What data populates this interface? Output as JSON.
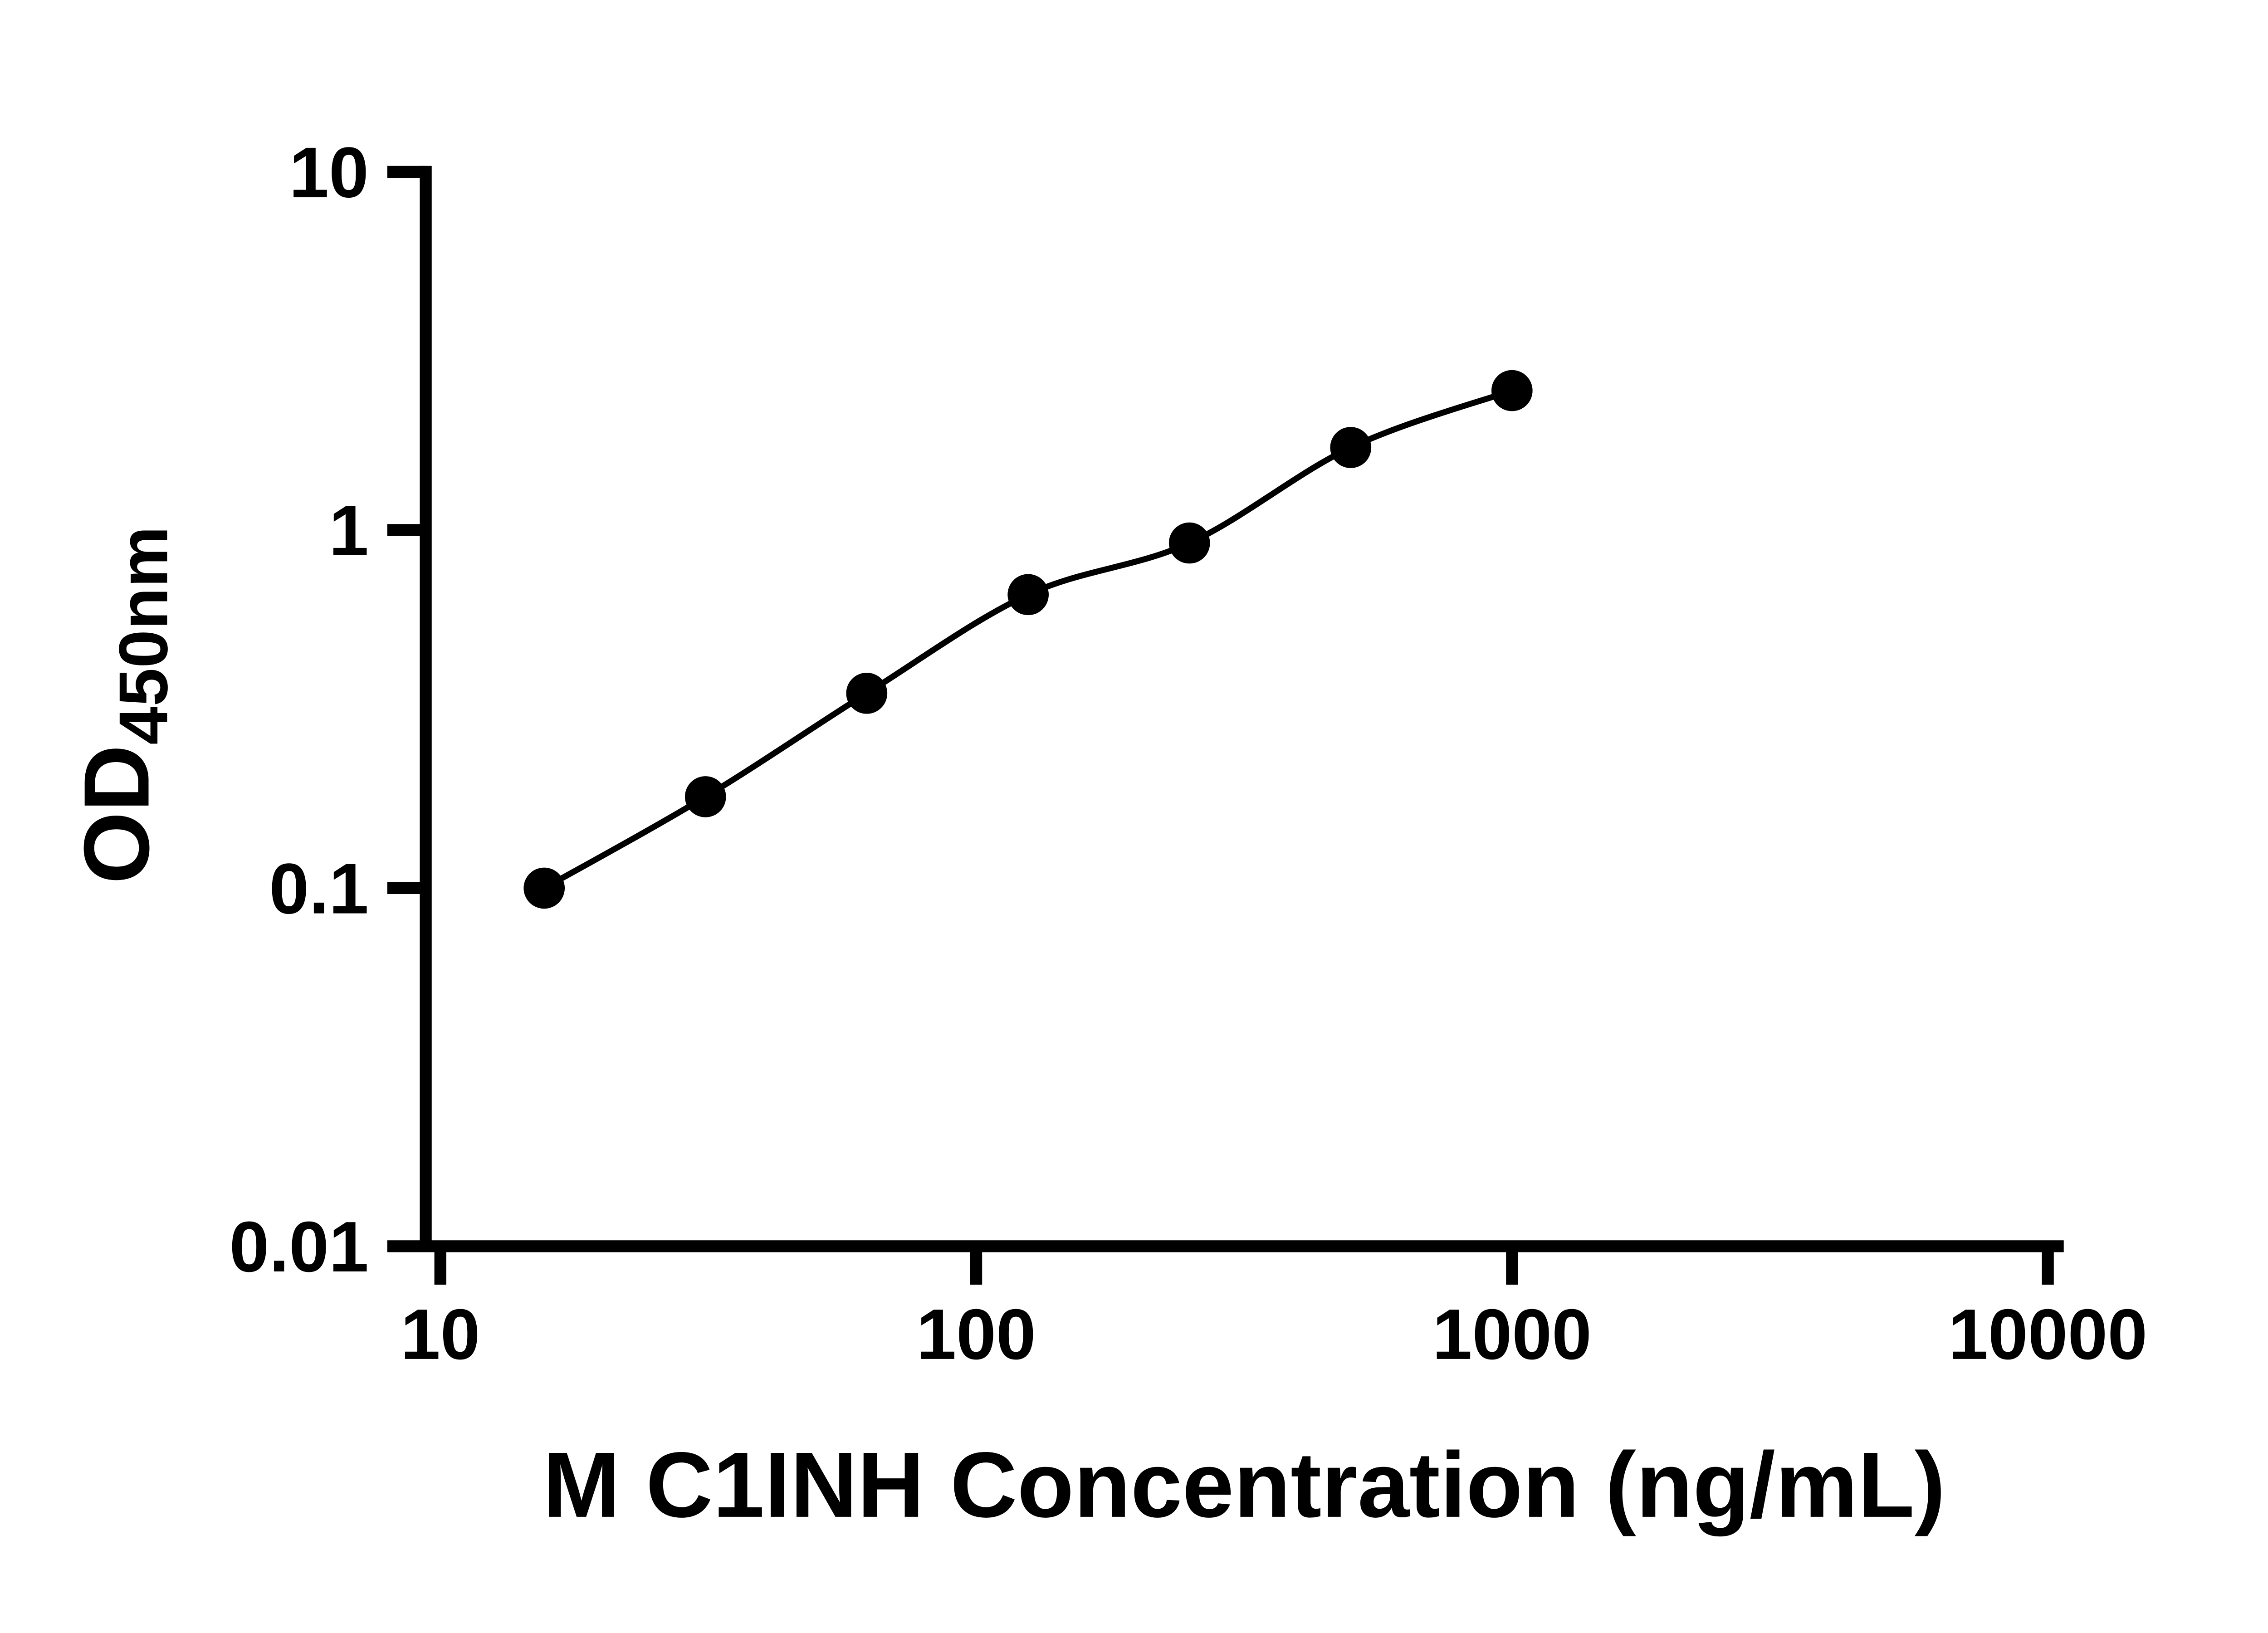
{
  "chart_data": {
    "type": "scatter",
    "title": "",
    "xlabel": "M C1INH Concentration (ng/mL)",
    "ylabel": "OD450nm",
    "ylabel_base": "OD",
    "ylabel_sub": "450nm",
    "x_scale": "log",
    "y_scale": "log",
    "xlim": [
      10,
      10000
    ],
    "ylim": [
      0.01,
      10
    ],
    "x_ticks": [
      10,
      100,
      1000,
      10000
    ],
    "y_ticks": [
      10,
      1,
      0.1,
      0.01
    ],
    "x_tick_labels": [
      "10",
      "100",
      "1000",
      "10000"
    ],
    "y_tick_labels": [
      "10",
      "1",
      "0.1",
      "0.01"
    ],
    "grid": false,
    "legend": "none",
    "axis_color": "#000000",
    "background": "#ffffff",
    "series": [
      {
        "marker": "filled-circle",
        "color": "#000000",
        "line": "smooth-fit-curve",
        "points": [
          {
            "x": 15.625,
            "y": 0.1
          },
          {
            "x": 31.25,
            "y": 0.18
          },
          {
            "x": 62.5,
            "y": 0.35
          },
          {
            "x": 125,
            "y": 0.66
          },
          {
            "x": 250,
            "y": 0.92
          },
          {
            "x": 500,
            "y": 1.7
          },
          {
            "x": 1000,
            "y": 2.45
          }
        ]
      }
    ]
  }
}
